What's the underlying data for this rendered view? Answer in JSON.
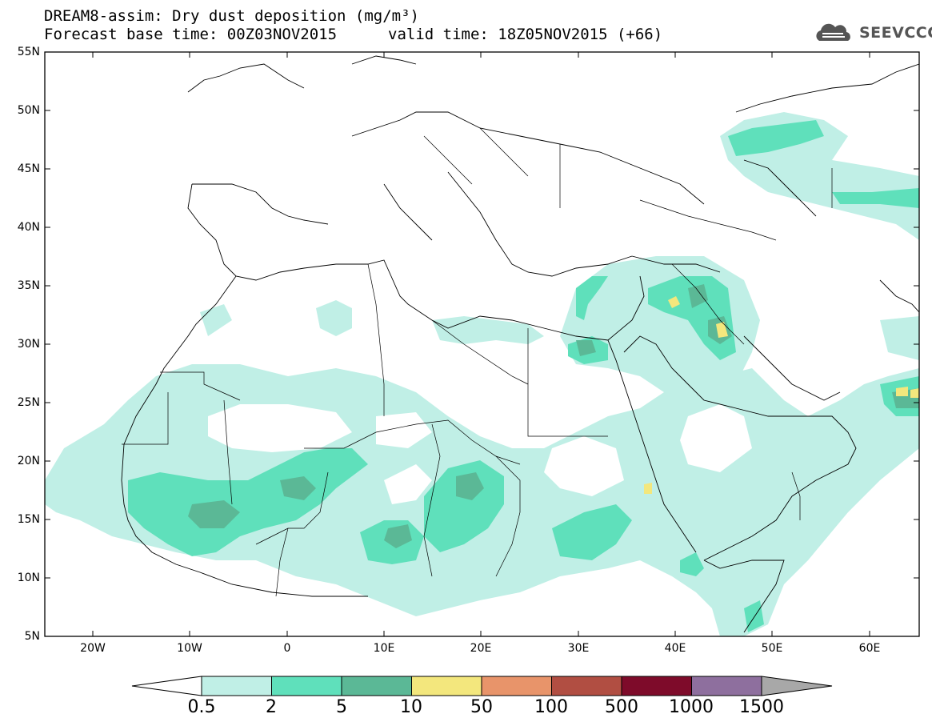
{
  "title_line1": "DREAM8-assim: Dry dust deposition (mg/m³)",
  "title_line2_left": "Forecast base time: 00Z03NOV2015",
  "title_line2_right": "valid time: 18Z05NOV2015 (+66)",
  "logo_text": "SEEVCCC",
  "lat_labels": [
    "55N",
    "50N",
    "45N",
    "40N",
    "35N",
    "30N",
    "25N",
    "20N",
    "15N",
    "10N",
    "5N"
  ],
  "lon_labels": [
    "20W",
    "10W",
    "0",
    "10E",
    "20E",
    "30E",
    "40E",
    "50E",
    "60E"
  ],
  "colorbar": {
    "labels": [
      "0.5",
      "2",
      "5",
      "10",
      "50",
      "100",
      "500",
      "1000",
      "1500"
    ],
    "colors": [
      "#ffffff",
      "#c0efe6",
      "#5fe0bb",
      "#5bb896",
      "#f3e77d",
      "#e8946a",
      "#b14e42",
      "#7e0b2a",
      "#8e6f9e",
      "#a8a8a8"
    ]
  }
}
